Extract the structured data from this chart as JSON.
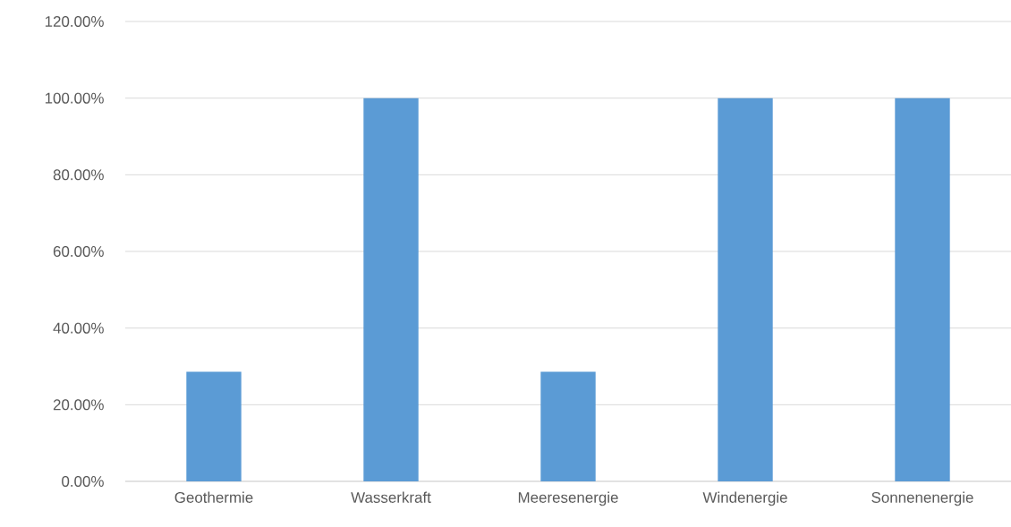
{
  "chart_data": {
    "type": "bar",
    "categories": [
      "Geothermie",
      "Wasserkraft",
      "Meeresenergie",
      "Windenergie",
      "Sonnenenergie"
    ],
    "values": [
      28.6,
      100,
      28.6,
      100,
      100
    ],
    "color": "#5b9bd5",
    "ylim": [
      0,
      120
    ],
    "yticks": [
      {
        "value": 0,
        "label": "0.00%"
      },
      {
        "value": 20,
        "label": "20.00%"
      },
      {
        "value": 40,
        "label": "40.00%"
      },
      {
        "value": 60,
        "label": "60.00%"
      },
      {
        "value": 80,
        "label": "80.00%"
      },
      {
        "value": 100,
        "label": "100.00%"
      },
      {
        "value": 120,
        "label": "120.00%"
      }
    ],
    "grid": "y"
  }
}
